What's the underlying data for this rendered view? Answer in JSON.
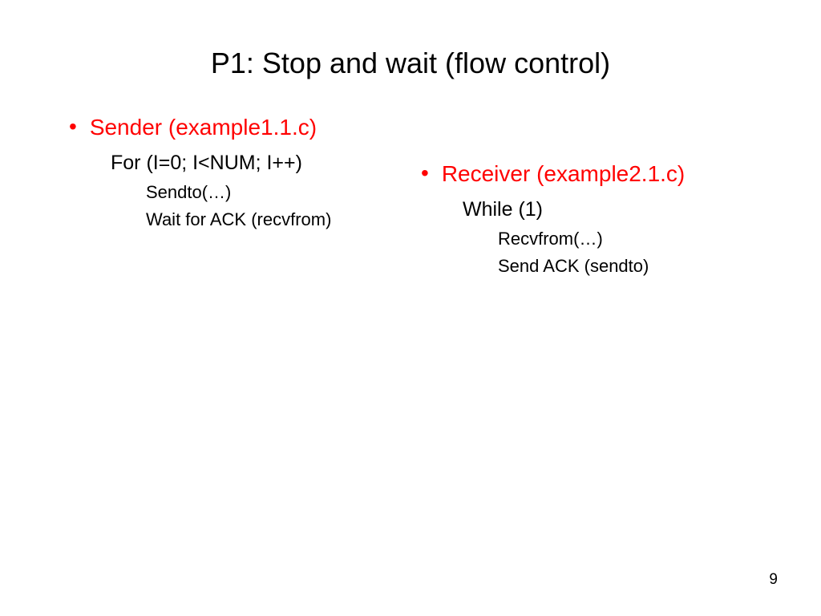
{
  "slide": {
    "title": "P1: Stop and wait (flow control)",
    "page_number": "9",
    "title_color": "#000000",
    "heading_color": "#ff0000",
    "body_color": "#000000",
    "background_color": "#ffffff",
    "left_column": {
      "heading": "Sender (example1.1.c)",
      "line1": "For (I=0; I<NUM; I++)",
      "sub1": "Sendto(…)",
      "sub2": "Wait for ACK (recvfrom)"
    },
    "right_column": {
      "heading": "Receiver (example2.1.c)",
      "line1": "While (1)",
      "sub1": "Recvfrom(…)",
      "sub2": "Send ACK (sendto)"
    }
  }
}
